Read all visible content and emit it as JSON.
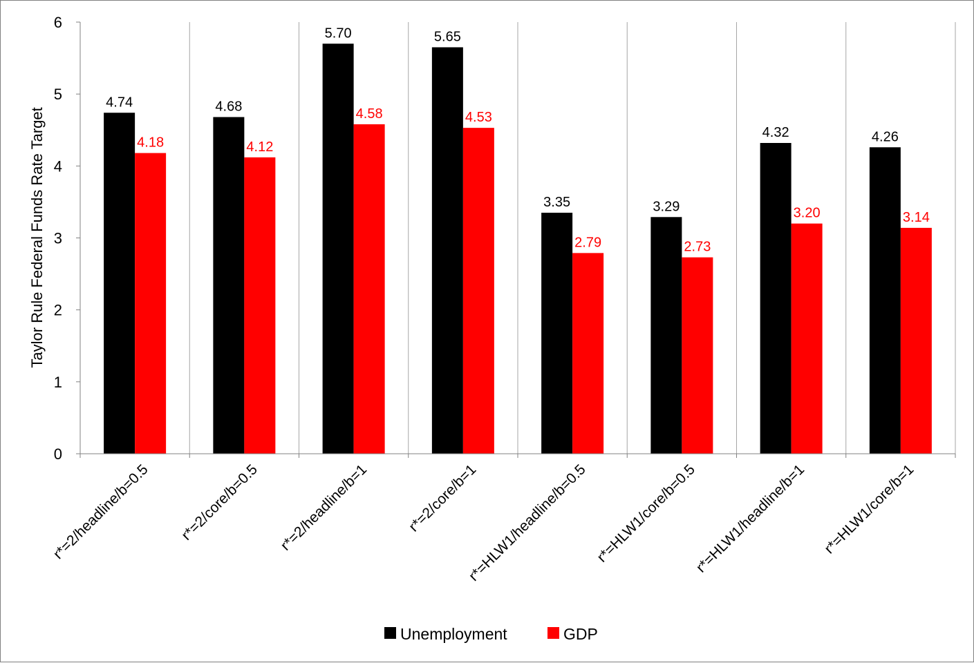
{
  "chart_data": {
    "type": "bar",
    "title": "",
    "xlabel": "",
    "ylabel": "Taylor Rule Federal Funds Rate Target",
    "ylim": [
      0,
      6
    ],
    "yticks": [
      "0",
      "1",
      "2",
      "3",
      "4",
      "5",
      "6"
    ],
    "grid": {
      "vertical": true,
      "horizontal": false
    },
    "legend_position": "bottom",
    "categories": [
      "r*=2/headline/b=0.5",
      "r*=2/core/b=0.5",
      "r*=2/headline/b=1",
      "r*=2/core/b=1",
      "r*=HLW1/headline/b=0.5",
      "r*=HLW1/core/b=0.5",
      "r*=HLW1/headline/b=1",
      "r*=HLW1/core/b=1"
    ],
    "series": [
      {
        "name": "Unemployment",
        "color": "#000000",
        "label_color": "#000000",
        "values": [
          4.74,
          4.68,
          5.7,
          5.65,
          3.35,
          3.29,
          4.32,
          4.26
        ],
        "labels": [
          "4.74",
          "4.68",
          "5.70",
          "5.65",
          "3.35",
          "3.29",
          "4.32",
          "4.26"
        ]
      },
      {
        "name": "GDP",
        "color": "#ff0000",
        "label_color": "#ff0000",
        "values": [
          4.18,
          4.12,
          4.58,
          4.53,
          2.79,
          2.73,
          3.2,
          3.14
        ],
        "labels": [
          "4.18",
          "4.12",
          "4.58",
          "4.53",
          "2.79",
          "2.73",
          "3.20",
          "3.14"
        ]
      }
    ]
  }
}
